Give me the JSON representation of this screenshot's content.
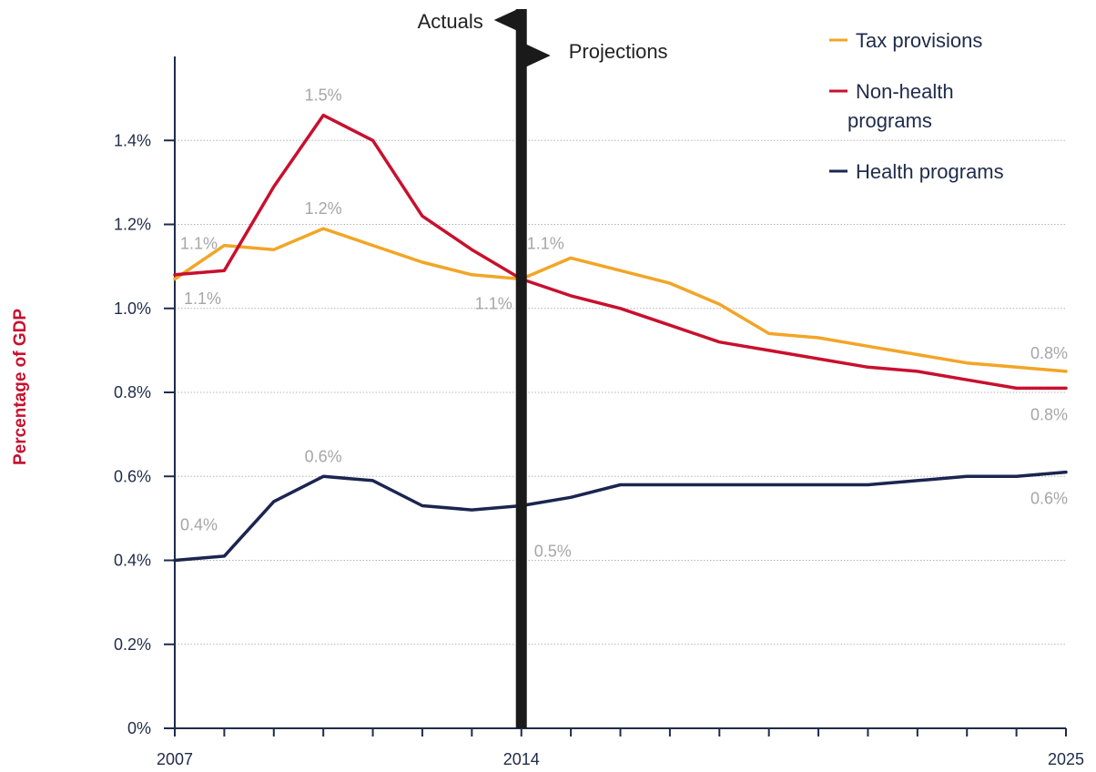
{
  "chart_data": {
    "type": "line",
    "title": "",
    "xlabel": "",
    "ylabel": "Percentage of GDP",
    "ylabel_color": "#c8102e",
    "x": [
      2007,
      2008,
      2009,
      2010,
      2011,
      2012,
      2013,
      2014,
      2015,
      2016,
      2017,
      2018,
      2019,
      2020,
      2021,
      2022,
      2023,
      2024,
      2025
    ],
    "xlim": [
      2007,
      2025
    ],
    "ylim": [
      0,
      1.6
    ],
    "x_tick_labels": [
      "2007",
      "2014",
      "2025"
    ],
    "x_tick_values": [
      2007,
      2014,
      2025
    ],
    "y_ticks": [
      {
        "value": 0,
        "label": "0%"
      },
      {
        "value": 0.2,
        "label": "0.2%"
      },
      {
        "value": 0.4,
        "label": "0.4%"
      },
      {
        "value": 0.6,
        "label": "0.6%"
      },
      {
        "value": 0.8,
        "label": "0.8%"
      },
      {
        "value": 1.0,
        "label": "1.0%"
      },
      {
        "value": 1.2,
        "label": "1.2%"
      },
      {
        "value": 1.4,
        "label": "1.4%"
      }
    ],
    "grid": "horizontal dotted",
    "legend_position": "top-right",
    "divider": {
      "x": 2014,
      "left_label": "Actuals",
      "right_label": "Projections"
    },
    "series": [
      {
        "name": "Tax provisions",
        "color": "#f2a526",
        "values": [
          1.07,
          1.15,
          1.14,
          1.19,
          1.15,
          1.11,
          1.08,
          1.07,
          1.12,
          1.09,
          1.06,
          1.01,
          0.94,
          0.93,
          0.91,
          0.89,
          0.87,
          0.86,
          0.85
        ]
      },
      {
        "name": "Non-health programs",
        "legend_lines": [
          "Non-health",
          "programs"
        ],
        "color": "#c8102e",
        "values": [
          1.08,
          1.09,
          1.29,
          1.46,
          1.4,
          1.22,
          1.14,
          1.07,
          1.03,
          1.0,
          0.96,
          0.92,
          0.9,
          0.88,
          0.86,
          0.85,
          0.83,
          0.81,
          0.81
        ]
      },
      {
        "name": "Health programs",
        "color": "#1b2550",
        "values": [
          0.4,
          0.41,
          0.54,
          0.6,
          0.59,
          0.53,
          0.52,
          0.53,
          0.55,
          0.58,
          0.58,
          0.58,
          0.58,
          0.58,
          0.58,
          0.59,
          0.6,
          0.6,
          0.61
        ]
      }
    ],
    "annotations": [
      {
        "text": "1.1%",
        "x": 2007,
        "y": 1.07,
        "pos": "above-right"
      },
      {
        "text": "1.1%",
        "x": 2007,
        "y": 1.08,
        "pos": "below-right"
      },
      {
        "text": "1.5%",
        "x": 2010,
        "y": 1.46,
        "pos": "above"
      },
      {
        "text": "1.2%",
        "x": 2010,
        "y": 1.19,
        "pos": "above"
      },
      {
        "text": "0.6%",
        "x": 2010,
        "y": 0.6,
        "pos": "above"
      },
      {
        "text": "1.1%",
        "x": 2014,
        "y": 1.07,
        "pos": "above-right"
      },
      {
        "text": "1.1%",
        "x": 2014,
        "y": 1.07,
        "pos": "below-left"
      },
      {
        "text": "0.5%",
        "x": 2014,
        "y": 0.53,
        "pos": "below-right"
      },
      {
        "text": "0.4%",
        "x": 2007,
        "y": 0.4,
        "pos": "above-right"
      },
      {
        "text": "0.8%",
        "x": 2025,
        "y": 0.85,
        "pos": "above-left"
      },
      {
        "text": "0.8%",
        "x": 2025,
        "y": 0.81,
        "pos": "below-left"
      },
      {
        "text": "0.6%",
        "x": 2025,
        "y": 0.61,
        "pos": "below-left"
      }
    ]
  }
}
